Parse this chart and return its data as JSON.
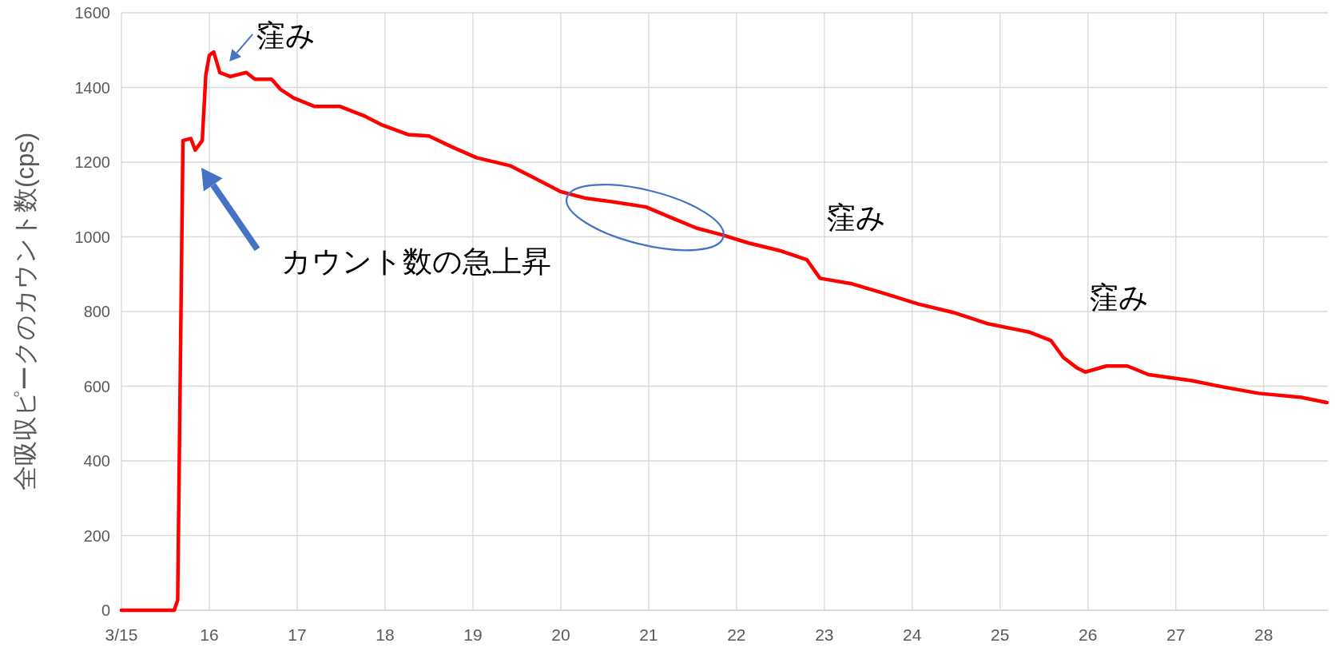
{
  "chart_data": {
    "type": "line",
    "ylabel": "全吸収ピークのカウント数(cps)",
    "x": [
      15,
      15.6,
      15.64,
      15.7,
      15.79,
      15.84,
      15.92,
      15.96,
      16.0,
      16.05,
      16.12,
      16.24,
      16.42,
      16.52,
      16.71,
      16.81,
      16.96,
      17.2,
      17.49,
      17.78,
      17.97,
      18.26,
      18.5,
      18.75,
      19.04,
      19.43,
      19.72,
      20.0,
      20.29,
      20.58,
      20.97,
      21.26,
      21.55,
      21.84,
      22.13,
      22.51,
      22.8,
      22.95,
      23.3,
      23.69,
      24.07,
      24.46,
      24.85,
      25.33,
      25.58,
      25.72,
      25.87,
      25.97,
      26.21,
      26.45,
      26.69,
      27.18,
      27.56,
      27.94,
      28.43,
      28.72
    ],
    "series": [
      {
        "color": "#ff0000",
        "values": [
          0,
          0,
          27,
          1258,
          1263,
          1232,
          1258,
          1433,
          1486,
          1495,
          1440,
          1429,
          1440,
          1422,
          1422,
          1395,
          1372,
          1349,
          1349,
          1322,
          1299,
          1274,
          1270,
          1242,
          1212,
          1190,
          1155,
          1121,
          1103,
          1094,
          1080,
          1051,
          1023,
          1005,
          984,
          962,
          939,
          889,
          875,
          848,
          820,
          798,
          768,
          745,
          722,
          677,
          650,
          638,
          654,
          654,
          631,
          615,
          597,
          581,
          570,
          556
        ]
      }
    ],
    "xlim": [
      15,
      28.73
    ],
    "xticks": [
      {
        "value": 15,
        "label": "3/15"
      },
      16,
      17,
      18,
      19,
      20,
      21,
      22,
      23,
      24,
      25,
      26,
      27,
      28
    ],
    "ylim": [
      0,
      1600
    ],
    "yticks": [
      0,
      200,
      400,
      600,
      800,
      1000,
      1200,
      1400,
      1600
    ],
    "grid": true,
    "annotations": [
      {
        "text": "窪み",
        "x": 16.12,
        "y": 1440
      },
      "カウント数の急上昇",
      {
        "text": "窪み",
        "x": 22.95,
        "y": 889
      },
      {
        "text": "窪み",
        "x": 25.87,
        "y": 650
      }
    ]
  }
}
